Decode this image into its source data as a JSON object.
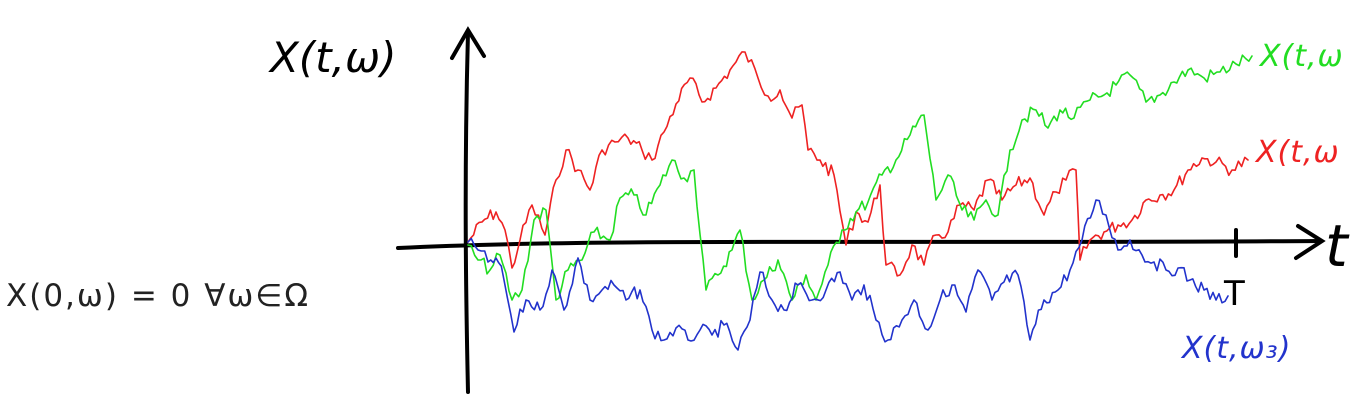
{
  "diagram": {
    "y_axis_label": "X(t,ω)",
    "x_axis_label": "t",
    "terminal_time_label": "T",
    "initial_condition": "X(0,ω) = 0   ∀ω∈Ω",
    "paths": [
      {
        "label": "X(t,ω",
        "color": "#22dd22"
      },
      {
        "label": "X(t,ω",
        "color": "#ee2222"
      },
      {
        "label": "X(t,ω₃)",
        "color": "#2233cc"
      }
    ]
  }
}
